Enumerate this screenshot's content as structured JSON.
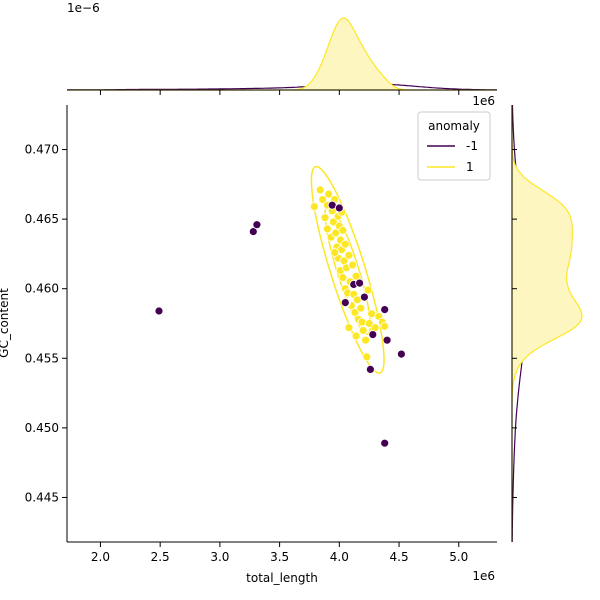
{
  "chart_data": {
    "type": "scatter",
    "xlabel": "total_length",
    "ylabel": "GC_content",
    "x_offset_text": "1e6",
    "y_offset_text": "1e6",
    "top_marginal_offset_text": "1e−6",
    "xlim": [
      1.72,
      5.32
    ],
    "ylim": [
      0.4418,
      0.4732
    ],
    "x_ticks": [
      2.0,
      2.5,
      3.0,
      3.5,
      4.0,
      4.5,
      5.0
    ],
    "x_tick_labels": [
      "2.0",
      "2.5",
      "3.0",
      "3.5",
      "4.0",
      "4.5",
      "5.0"
    ],
    "y_ticks": [
      0.445,
      0.45,
      0.455,
      0.46,
      0.465,
      0.47
    ],
    "y_tick_labels": [
      "0.445",
      "0.450",
      "0.455",
      "0.460",
      "0.465",
      "0.470"
    ],
    "grid": false,
    "legend": {
      "title": "anomaly",
      "placement": "top-right",
      "entries": [
        {
          "label": "-1",
          "color": "#440154"
        },
        {
          "label": "1",
          "color": "#fde725"
        }
      ]
    },
    "colors": {
      "anomaly_neg": "#440154",
      "anomaly_pos": "#fde725",
      "kde_fill": "#fef6c0"
    },
    "series": [
      {
        "name": "-1",
        "color": "#440154",
        "points": [
          [
            2.49,
            0.4584
          ],
          [
            3.28,
            0.4641
          ],
          [
            3.31,
            0.4646
          ],
          [
            3.94,
            0.466
          ],
          [
            4.0,
            0.4658
          ],
          [
            4.05,
            0.459
          ],
          [
            4.12,
            0.4603
          ],
          [
            4.17,
            0.4604
          ],
          [
            4.21,
            0.4594
          ],
          [
            4.26,
            0.4542
          ],
          [
            4.28,
            0.4567
          ],
          [
            4.38,
            0.4585
          ],
          [
            4.4,
            0.4563
          ],
          [
            4.52,
            0.4553
          ],
          [
            4.38,
            0.4489
          ]
        ]
      },
      {
        "name": "1",
        "color": "#fde725",
        "points": [
          [
            3.79,
            0.4659
          ],
          [
            3.84,
            0.4671
          ],
          [
            3.86,
            0.4664
          ],
          [
            3.88,
            0.4651
          ],
          [
            3.9,
            0.466
          ],
          [
            3.9,
            0.4643
          ],
          [
            3.91,
            0.4668
          ],
          [
            3.93,
            0.4637
          ],
          [
            3.94,
            0.4656
          ],
          [
            3.95,
            0.4648
          ],
          [
            3.96,
            0.4664
          ],
          [
            3.97,
            0.464
          ],
          [
            3.98,
            0.463
          ],
          [
            3.99,
            0.4652
          ],
          [
            3.99,
            0.4622
          ],
          [
            4.0,
            0.4645
          ],
          [
            4.01,
            0.4635
          ],
          [
            4.01,
            0.4613
          ],
          [
            4.02,
            0.4628
          ],
          [
            4.03,
            0.4642
          ],
          [
            4.03,
            0.4608
          ],
          [
            4.04,
            0.462
          ],
          [
            4.05,
            0.46
          ],
          [
            4.05,
            0.4632
          ],
          [
            4.06,
            0.4615
          ],
          [
            4.07,
            0.4597
          ],
          [
            4.08,
            0.4624
          ],
          [
            4.08,
            0.4572
          ],
          [
            4.09,
            0.4605
          ],
          [
            4.1,
            0.4588
          ],
          [
            4.11,
            0.4617
          ],
          [
            4.12,
            0.4596
          ],
          [
            4.13,
            0.4583
          ],
          [
            4.14,
            0.4609
          ],
          [
            4.15,
            0.4592
          ],
          [
            4.16,
            0.4578
          ],
          [
            4.18,
            0.4586
          ],
          [
            4.19,
            0.4576
          ],
          [
            4.2,
            0.457
          ],
          [
            4.22,
            0.4563
          ],
          [
            4.23,
            0.4551
          ],
          [
            4.24,
            0.4599
          ],
          [
            4.25,
            0.4575
          ],
          [
            4.27,
            0.4582
          ],
          [
            4.3,
            0.4572
          ],
          [
            4.33,
            0.458
          ],
          [
            4.36,
            0.4576
          ],
          [
            4.38,
            0.4573
          ],
          [
            4.02,
            0.4655
          ],
          [
            3.96,
            0.4626
          ],
          [
            4.06,
            0.459
          ],
          [
            4.14,
            0.4566
          ]
        ]
      }
    ]
  }
}
